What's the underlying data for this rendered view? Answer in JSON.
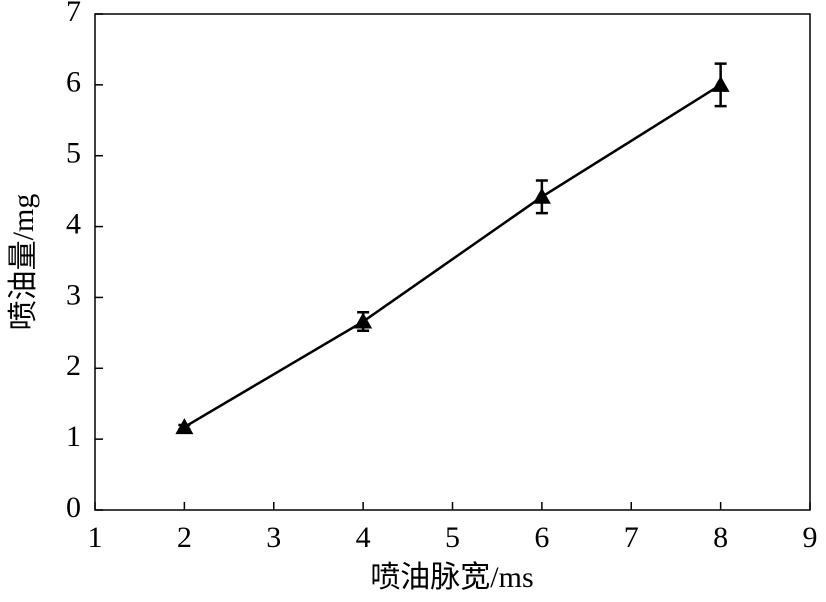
{
  "chart_data": {
    "type": "line",
    "x_label": "喷油脉宽/ms",
    "y_label": "喷油量/mg",
    "x": [
      2,
      4,
      6,
      8
    ],
    "series": [
      {
        "color": "#000000",
        "values": [
          1.17,
          2.66,
          4.42,
          6.0
        ],
        "errors": [
          0.03,
          0.13,
          0.23,
          0.3
        ]
      }
    ],
    "xlim": [
      1,
      9
    ],
    "xticks": [
      1,
      2,
      3,
      4,
      5,
      6,
      7,
      8,
      9
    ],
    "ylim": [
      0,
      7
    ],
    "yticks": [
      0,
      1,
      2,
      3,
      4,
      5,
      6,
      7
    ],
    "grid": false
  }
}
